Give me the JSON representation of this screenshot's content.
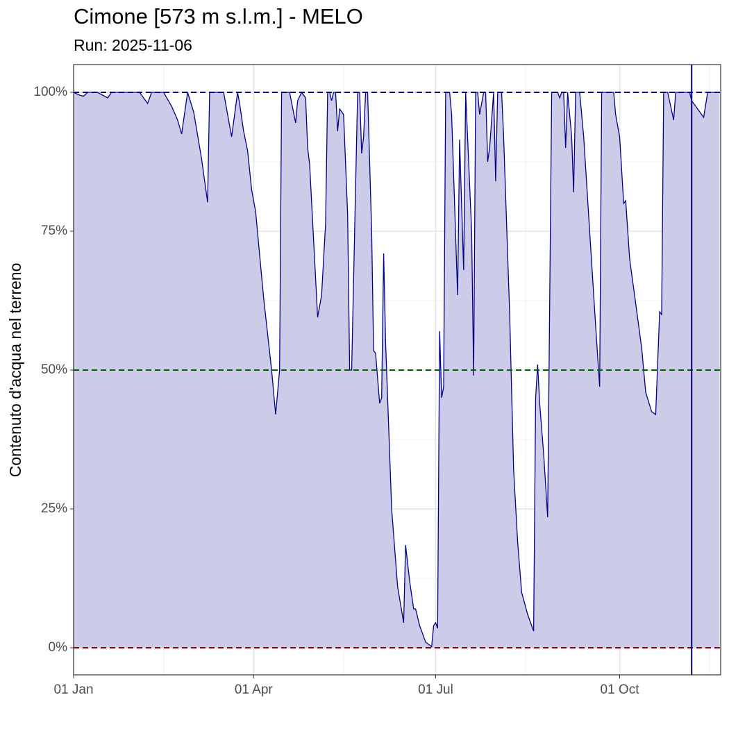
{
  "chart_data": {
    "type": "area",
    "title": "Cimone [573 m s.l.m.] - MELO",
    "subtitle": "Run: 2025-11-06",
    "y_label": "Contenuto d'acqua nel terreno",
    "x": [
      0,
      3,
      5,
      7,
      12,
      17,
      19,
      33,
      37,
      39,
      45,
      49,
      52,
      54,
      57,
      60,
      64,
      67,
      68,
      75,
      79,
      82,
      83,
      85,
      87,
      89,
      91,
      95,
      99,
      101,
      103,
      104,
      108,
      111,
      112,
      114,
      116,
      117,
      118,
      122,
      124,
      126,
      127,
      128,
      129,
      130,
      131,
      132,
      133,
      135,
      137,
      138,
      139,
      142,
      143,
      144,
      145,
      146,
      147,
      149,
      150,
      151,
      153,
      154,
      155,
      156,
      159,
      162,
      165,
      166,
      168,
      170,
      171,
      173,
      176,
      179,
      180,
      181,
      182,
      183,
      184,
      185,
      186,
      188,
      189,
      192,
      193,
      195,
      196,
      199,
      200,
      201,
      202,
      203,
      205,
      206,
      207,
      208,
      210,
      211,
      212,
      214,
      215,
      218,
      220,
      222,
      224,
      227,
      230,
      231,
      232,
      233,
      235,
      237,
      239,
      242,
      243,
      244,
      245,
      246,
      247,
      249,
      250,
      251,
      253,
      255,
      258,
      261,
      263,
      264,
      266,
      270,
      271,
      273,
      275,
      276,
      278,
      281,
      284,
      286,
      289,
      291,
      293,
      294,
      295,
      297,
      300,
      301,
      308,
      309,
      312,
      315,
      317,
      323
    ],
    "values": [
      100,
      99.5,
      99.3,
      100,
      100,
      99,
      100,
      100,
      98,
      100,
      100,
      97.5,
      95,
      92.5,
      100,
      96.5,
      88,
      80.2,
      100,
      100,
      92,
      100,
      98,
      93,
      89.5,
      82.5,
      78.5,
      63,
      50,
      42,
      50,
      100,
      100,
      94.5,
      98.5,
      100,
      99,
      90,
      87,
      59.5,
      63.5,
      76.5,
      100,
      100,
      98.5,
      100,
      100,
      93,
      97,
      96,
      78,
      50,
      50,
      100,
      100,
      89,
      92,
      100,
      100,
      75,
      53.5,
      53,
      44,
      45,
      71,
      55,
      25,
      11,
      4.5,
      18.5,
      12,
      7,
      7,
      4,
      1,
      0.2,
      4,
      4.5,
      3.5,
      57,
      45,
      47,
      100,
      100,
      96,
      63.5,
      91.5,
      68,
      100,
      75,
      49,
      100,
      100,
      96,
      100,
      100,
      87.5,
      90,
      100,
      84,
      100,
      100,
      92,
      60,
      32,
      19,
      10,
      6,
      3,
      45,
      51,
      44,
      35,
      23.5,
      100,
      100,
      99,
      100,
      100,
      90,
      100,
      92,
      82,
      100,
      100,
      92,
      75,
      58,
      47,
      100,
      100,
      100,
      96,
      92,
      80,
      80.5,
      70,
      62,
      54,
      46,
      42.5,
      42,
      60.5,
      60,
      100,
      100,
      95,
      100,
      100,
      98.5,
      97,
      95.5,
      100,
      100
    ],
    "color": "#00008b",
    "fill": "#cccce8",
    "xlim": [
      0,
      323.5
    ],
    "xticks": [
      {
        "value": 0,
        "label": "01 Jan"
      },
      {
        "value": 90,
        "label": "01 Apr"
      },
      {
        "value": 181,
        "label": "01 Jul"
      },
      {
        "value": 273,
        "label": "01 Oct"
      }
    ],
    "ylim": [
      -4.875,
      105
    ],
    "yticks": [
      {
        "value": 0,
        "label": "0%"
      },
      {
        "value": 25,
        "label": "25%"
      },
      {
        "value": 50,
        "label": "50%"
      },
      {
        "value": 75,
        "label": "75%"
      },
      {
        "value": 100,
        "label": "100%"
      }
    ],
    "hlines": [
      {
        "value": 100,
        "color": "#00008b"
      },
      {
        "value": 50,
        "color": "#006400"
      },
      {
        "value": 0,
        "color": "#8b0000"
      }
    ],
    "vline": 309,
    "grid": true
  }
}
